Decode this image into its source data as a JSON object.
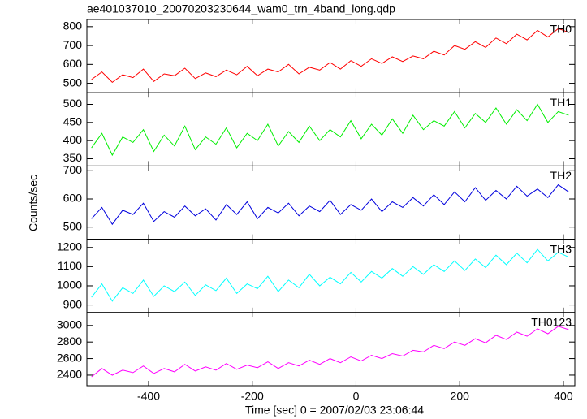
{
  "title": "ae401037010_20070203230644_wam0_trn_4band_long.qdp",
  "y_label": "Counts/sec",
  "x_label": "Time [sec] 0 = 2007/02/03 23:06:44",
  "chart_data": [
    {
      "type": "line",
      "xlim": [
        -519,
        422
      ],
      "ylim": [
        450,
        838
      ],
      "yticks": [
        500,
        600,
        700,
        800
      ],
      "x": [
        -510,
        -490,
        -470,
        -450,
        -430,
        -410,
        -390,
        -370,
        -350,
        -330,
        -310,
        -290,
        -270,
        -250,
        -230,
        -210,
        -190,
        -170,
        -150,
        -130,
        -110,
        -90,
        -70,
        -50,
        -30,
        -10,
        10,
        30,
        50,
        70,
        90,
        110,
        130,
        150,
        170,
        190,
        210,
        230,
        250,
        270,
        290,
        310,
        330,
        350,
        370,
        390,
        410
      ],
      "series": [
        {
          "name": "TH0",
          "color": "#ff0000",
          "values": [
            520,
            560,
            505,
            545,
            530,
            575,
            510,
            550,
            540,
            580,
            525,
            555,
            535,
            570,
            545,
            590,
            540,
            575,
            560,
            600,
            550,
            585,
            570,
            610,
            575,
            620,
            590,
            630,
            605,
            640,
            615,
            645,
            630,
            670,
            650,
            700,
            680,
            720,
            690,
            740,
            710,
            760,
            730,
            780,
            745,
            790,
            770
          ]
        }
      ]
    },
    {
      "type": "line",
      "xlim": [
        -519,
        422
      ],
      "ylim": [
        330,
        532
      ],
      "yticks": [
        350,
        400,
        450,
        500
      ],
      "x": [
        -510,
        -490,
        -470,
        -450,
        -430,
        -410,
        -390,
        -370,
        -350,
        -330,
        -310,
        -290,
        -270,
        -250,
        -230,
        -210,
        -190,
        -170,
        -150,
        -130,
        -110,
        -90,
        -70,
        -50,
        -30,
        -10,
        10,
        30,
        50,
        70,
        90,
        110,
        130,
        150,
        170,
        190,
        210,
        230,
        250,
        270,
        290,
        310,
        330,
        350,
        370,
        390,
        410
      ],
      "series": [
        {
          "name": "TH1",
          "color": "#00ee00",
          "values": [
            380,
            420,
            360,
            410,
            395,
            430,
            370,
            415,
            385,
            440,
            375,
            410,
            390,
            435,
            380,
            420,
            400,
            445,
            385,
            425,
            395,
            440,
            400,
            430,
            410,
            455,
            405,
            445,
            415,
            460,
            420,
            470,
            430,
            455,
            440,
            480,
            435,
            475,
            450,
            490,
            445,
            485,
            455,
            500,
            450,
            480,
            470
          ]
        }
      ]
    },
    {
      "type": "line",
      "xlim": [
        -519,
        422
      ],
      "ylim": [
        457,
        717
      ],
      "yticks": [
        500,
        600,
        700
      ],
      "x": [
        -510,
        -490,
        -470,
        -450,
        -430,
        -410,
        -390,
        -370,
        -350,
        -330,
        -310,
        -290,
        -270,
        -250,
        -230,
        -210,
        -190,
        -170,
        -150,
        -130,
        -110,
        -90,
        -70,
        -50,
        -30,
        -10,
        10,
        30,
        50,
        70,
        90,
        110,
        130,
        150,
        170,
        190,
        210,
        230,
        250,
        270,
        290,
        310,
        330,
        350,
        370,
        390,
        410
      ],
      "series": [
        {
          "name": "TH2",
          "color": "#0000dd",
          "values": [
            530,
            570,
            510,
            560,
            545,
            585,
            520,
            555,
            535,
            575,
            540,
            565,
            525,
            580,
            545,
            590,
            530,
            570,
            550,
            585,
            540,
            575,
            555,
            595,
            545,
            580,
            560,
            600,
            555,
            590,
            570,
            605,
            575,
            615,
            580,
            625,
            590,
            640,
            595,
            630,
            600,
            645,
            610,
            635,
            605,
            650,
            625
          ]
        }
      ]
    },
    {
      "type": "line",
      "xlim": [
        -519,
        422
      ],
      "ylim": [
        861,
        1243
      ],
      "yticks": [
        900,
        1000,
        1100,
        1200
      ],
      "x": [
        -510,
        -490,
        -470,
        -450,
        -430,
        -410,
        -390,
        -370,
        -350,
        -330,
        -310,
        -290,
        -270,
        -250,
        -230,
        -210,
        -190,
        -170,
        -150,
        -130,
        -110,
        -90,
        -70,
        -50,
        -30,
        -10,
        10,
        30,
        50,
        70,
        90,
        110,
        130,
        150,
        170,
        190,
        210,
        230,
        250,
        270,
        290,
        310,
        330,
        350,
        370,
        390,
        410
      ],
      "series": [
        {
          "name": "TH3",
          "color": "#00ffff",
          "values": [
            940,
            1010,
            920,
            990,
            960,
            1030,
            945,
            1000,
            970,
            1020,
            950,
            1005,
            975,
            1040,
            960,
            1010,
            985,
            1050,
            970,
            1030,
            990,
            1060,
            1000,
            1045,
            1010,
            1070,
            1020,
            1075,
            1040,
            1090,
            1050,
            1100,
            1060,
            1110,
            1075,
            1130,
            1080,
            1140,
            1095,
            1160,
            1110,
            1170,
            1120,
            1190,
            1130,
            1175,
            1150
          ]
        }
      ]
    },
    {
      "type": "line",
      "xlim": [
        -519,
        422
      ],
      "ylim": [
        2272,
        3157
      ],
      "yticks": [
        2400,
        2600,
        2800,
        3000
      ],
      "xticks": [
        -400,
        -200,
        0,
        200,
        400
      ],
      "x": [
        -510,
        -490,
        -470,
        -450,
        -430,
        -410,
        -390,
        -370,
        -350,
        -330,
        -310,
        -290,
        -270,
        -250,
        -230,
        -210,
        -190,
        -170,
        -150,
        -130,
        -110,
        -90,
        -70,
        -50,
        -30,
        -10,
        10,
        30,
        50,
        70,
        90,
        110,
        130,
        150,
        170,
        190,
        210,
        230,
        250,
        270,
        290,
        310,
        330,
        350,
        370,
        390,
        410
      ],
      "series": [
        {
          "name": "TH0123",
          "color": "#ff00ff",
          "values": [
            2380,
            2480,
            2400,
            2460,
            2430,
            2510,
            2420,
            2480,
            2440,
            2530,
            2450,
            2500,
            2460,
            2540,
            2470,
            2520,
            2490,
            2560,
            2480,
            2550,
            2510,
            2580,
            2530,
            2600,
            2550,
            2620,
            2570,
            2640,
            2600,
            2660,
            2630,
            2700,
            2680,
            2760,
            2720,
            2800,
            2760,
            2840,
            2790,
            2880,
            2830,
            2920,
            2870,
            2960,
            2900,
            2990,
            2950
          ]
        }
      ]
    }
  ]
}
